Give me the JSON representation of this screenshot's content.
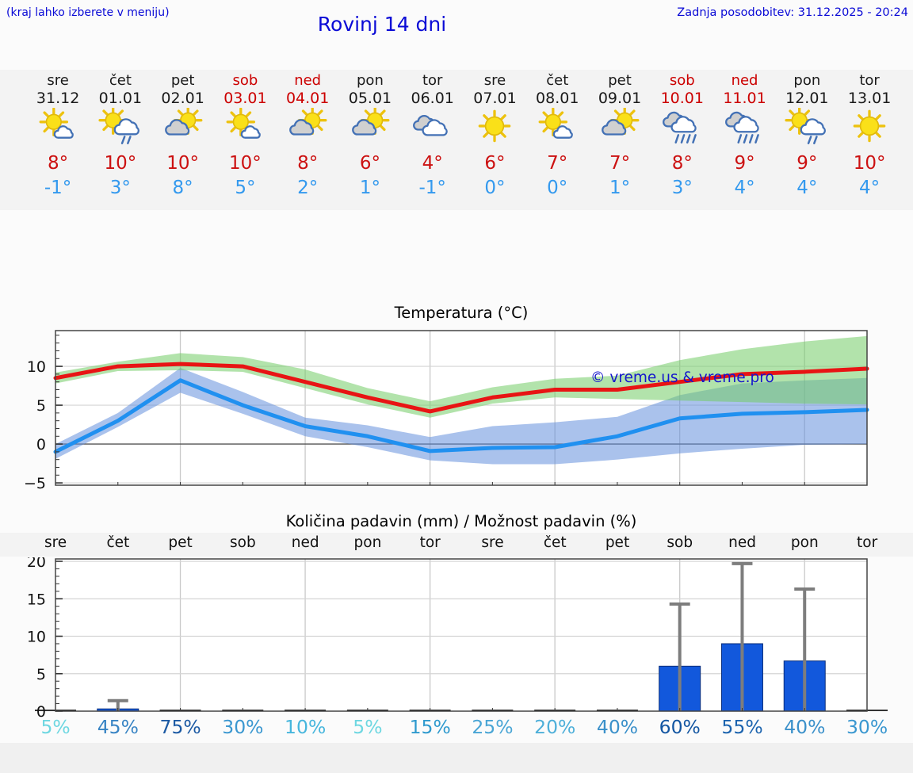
{
  "header": {
    "hint": "(kraj lahko izberete v meniju)",
    "title": "Rovinj 14 dni",
    "updated": "Zadnja posodobitev: 31.12.2025 - 20:24"
  },
  "days": [
    {
      "name": "sre",
      "date": "31.12",
      "weekend": false,
      "icon": "sun-small-cloud",
      "high": "8°",
      "low": "-1°"
    },
    {
      "name": "čet",
      "date": "01.01",
      "weekend": false,
      "icon": "sun-rain-cloud",
      "high": "10°",
      "low": "3°"
    },
    {
      "name": "pet",
      "date": "02.01",
      "weekend": false,
      "icon": "cloud-sun",
      "high": "10°",
      "low": "8°"
    },
    {
      "name": "sob",
      "date": "03.01",
      "weekend": true,
      "icon": "sun-small-cloud",
      "high": "10°",
      "low": "5°"
    },
    {
      "name": "ned",
      "date": "04.01",
      "weekend": true,
      "icon": "cloud-sun",
      "high": "8°",
      "low": "2°"
    },
    {
      "name": "pon",
      "date": "05.01",
      "weekend": false,
      "icon": "cloud-sun",
      "high": "6°",
      "low": "1°"
    },
    {
      "name": "tor",
      "date": "06.01",
      "weekend": false,
      "icon": "clouds",
      "high": "4°",
      "low": "-1°"
    },
    {
      "name": "sre",
      "date": "07.01",
      "weekend": false,
      "icon": "sun",
      "high": "6°",
      "low": "0°"
    },
    {
      "name": "čet",
      "date": "08.01",
      "weekend": false,
      "icon": "sun-small-cloud",
      "high": "7°",
      "low": "0°"
    },
    {
      "name": "pet",
      "date": "09.01",
      "weekend": false,
      "icon": "cloud-sun",
      "high": "7°",
      "low": "1°"
    },
    {
      "name": "sob",
      "date": "10.01",
      "weekend": true,
      "icon": "rain-clouds",
      "high": "8°",
      "low": "3°"
    },
    {
      "name": "ned",
      "date": "11.01",
      "weekend": true,
      "icon": "rain-clouds",
      "high": "9°",
      "low": "4°"
    },
    {
      "name": "pon",
      "date": "12.01",
      "weekend": false,
      "icon": "sun-rain-cloud",
      "high": "9°",
      "low": "4°"
    },
    {
      "name": "tor",
      "date": "13.01",
      "weekend": false,
      "icon": "sun",
      "high": "10°",
      "low": "4°"
    }
  ],
  "chart_data": [
    {
      "type": "line",
      "title": "Temperatura (°C)",
      "x_labels": [
        "sre",
        "čet",
        "pet",
        "sob",
        "ned",
        "pon",
        "tor",
        "sre",
        "čet",
        "pet",
        "sob",
        "ned",
        "pon",
        "tor"
      ],
      "ylim": [
        -5.5,
        14.6
      ],
      "yticks": [
        -5,
        0,
        5,
        10
      ],
      "grid": true,
      "watermark": "© vreme.us & vreme.pro",
      "bands": [
        {
          "name": "min-temp-range",
          "color": "#6490dc",
          "upper": [
            0,
            4,
            9.8,
            6.7,
            3.4,
            2.4,
            0.9,
            2.3,
            2.8,
            3.5,
            6.3,
            7.8,
            8.2,
            8.5
          ],
          "lower": [
            -1.9,
            2.2,
            6.6,
            3.9,
            1.0,
            -0.4,
            -2.1,
            -2.6,
            -2.6,
            -2.0,
            -1.2,
            -0.6,
            -0.1,
            0.0
          ]
        },
        {
          "name": "max-temp-range",
          "color": "#73cc66",
          "upper": [
            9.2,
            10.6,
            11.7,
            11.2,
            9.6,
            7.2,
            5.5,
            7.3,
            8.4,
            8.8,
            10.8,
            12.2,
            13.2,
            13.9
          ],
          "lower": [
            7.8,
            9.4,
            9.5,
            9.3,
            7.2,
            5.1,
            3.4,
            5.2,
            6.0,
            5.8,
            5.6,
            5.4,
            5.2,
            5.1
          ]
        }
      ],
      "series": [
        {
          "name": "max-temperature",
          "color": "#e81414",
          "values": [
            8.5,
            10,
            10.3,
            10,
            8,
            6,
            4.2,
            6,
            7,
            7,
            8,
            9,
            9.3,
            9.7
          ]
        },
        {
          "name": "min-temperature",
          "color": "#2090f0",
          "values": [
            -1,
            3,
            8.2,
            5,
            2.3,
            1,
            -0.9,
            -0.5,
            -0.4,
            1,
            3.3,
            3.9,
            4.1,
            4.4
          ]
        }
      ]
    },
    {
      "type": "bar",
      "title": "Količina padavin (mm) / Možnost padavin (%)",
      "categories": [
        "sre",
        "čet",
        "pet",
        "sob",
        "ned",
        "pon",
        "tor",
        "sre",
        "čet",
        "pet",
        "sob",
        "ned",
        "pon",
        "tor"
      ],
      "values": [
        0,
        0.3,
        0,
        0,
        0,
        0,
        0,
        0,
        0,
        0,
        6,
        9,
        6.7,
        0
      ],
      "error_max": [
        null,
        1.4,
        null,
        null,
        null,
        null,
        null,
        null,
        null,
        null,
        14.3,
        19.7,
        16.3,
        null
      ],
      "probability": [
        "5%",
        "45%",
        "75%",
        "30%",
        "10%",
        "5%",
        "15%",
        "25%",
        "20%",
        "40%",
        "60%",
        "55%",
        "40%",
        "30%"
      ],
      "prob_colors": [
        "#6ed7e1",
        "#3884c4",
        "#1b59a3",
        "#3a97d0",
        "#47b6dd",
        "#6ed7e1",
        "#2f9ace",
        "#49a5d5",
        "#4eafd9",
        "#3a90ca",
        "#1356a2",
        "#1b63ae",
        "#3a90ca",
        "#3a97d0"
      ],
      "bar_color": "#1258dc",
      "error_color": "#7d7d7d",
      "ylim": [
        0,
        20.5
      ],
      "yticks": [
        0,
        5,
        10,
        15,
        20
      ],
      "grid": true
    }
  ]
}
